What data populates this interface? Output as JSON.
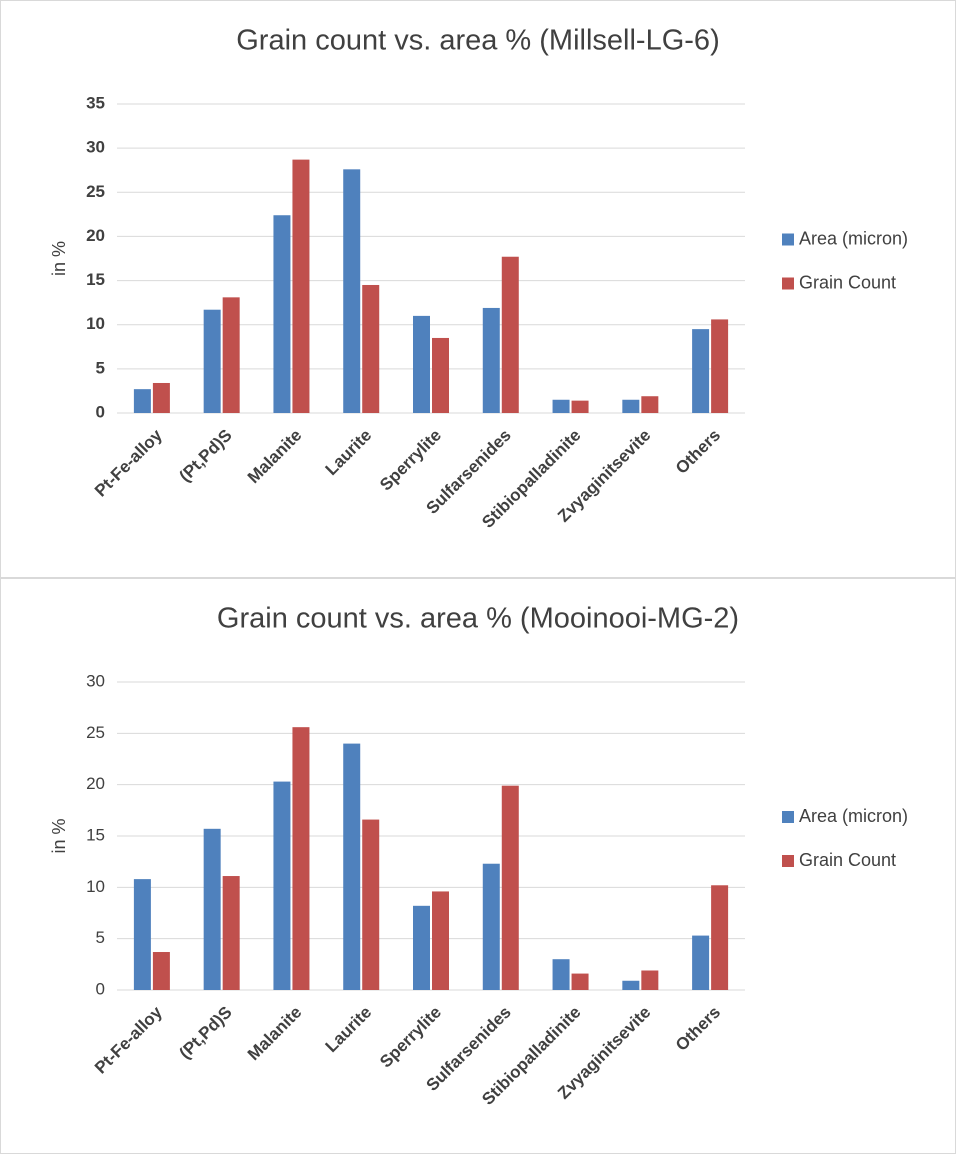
{
  "chart_data": [
    {
      "type": "bar",
      "title": "Grain count vs. area % (Millsell-LG-6)",
      "y_label": "in %",
      "categories": [
        "Pt-Fe-alloy",
        "(Pt,Pd)S",
        "Malanite",
        "Laurite",
        "Sperrylite",
        "Sulfarsenides",
        "Stibiopalladinite",
        "Zvyaginitsevite",
        "Others"
      ],
      "series": [
        {
          "name": "Area (micron)",
          "color": "#4f81bd",
          "values": [
            2.7,
            11.7,
            22.4,
            27.6,
            11,
            11.9,
            1.5,
            1.5,
            9.5
          ]
        },
        {
          "name": "Grain Count",
          "color": "#c0504d",
          "values": [
            3.4,
            13.1,
            28.7,
            14.5,
            8.5,
            17.7,
            1.4,
            1.9,
            10.6
          ]
        }
      ],
      "ylim": [
        0,
        35
      ],
      "yticks": [
        0,
        5,
        10,
        15,
        20,
        25,
        30,
        35
      ],
      "grid": true,
      "legend": "right"
    },
    {
      "type": "bar",
      "title": "Grain count vs. area % (Mooinooi-MG-2)",
      "y_label": "in %",
      "categories": [
        "Pt-Fe-alloy",
        "(Pt,Pd)S",
        "Malanite",
        "Laurite",
        "Sperrylite",
        "Sulfarsenides",
        "Stibiopalladinite",
        "Zvyaginitsevite",
        "Others"
      ],
      "series": [
        {
          "name": "Area (micron)",
          "color": "#4f81bd",
          "values": [
            10.8,
            15.7,
            20.3,
            24.0,
            8.2,
            12.3,
            3.0,
            0.9,
            5.3
          ]
        },
        {
          "name": "Grain Count",
          "color": "#c0504d",
          "values": [
            3.7,
            11.1,
            25.6,
            16.6,
            9.6,
            19.9,
            1.6,
            1.9,
            10.2
          ]
        }
      ],
      "ylim": [
        0,
        30
      ],
      "yticks": [
        0,
        5,
        10,
        15,
        20,
        25,
        30
      ],
      "grid": true,
      "legend": "right"
    }
  ]
}
